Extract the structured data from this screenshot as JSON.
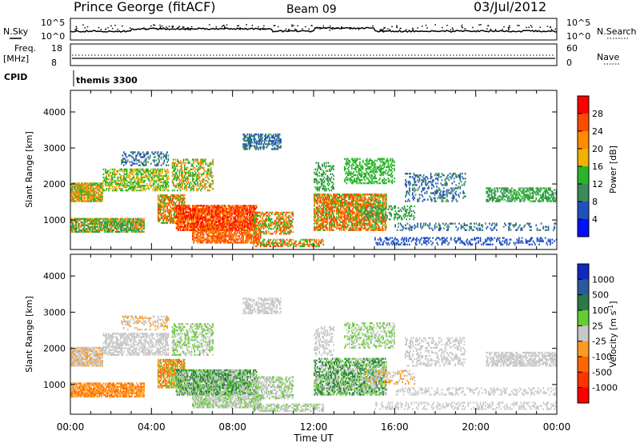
{
  "header": {
    "station": "Prince George (fitACF)",
    "beam": "Beam 09",
    "date": "03/Jul/2012"
  },
  "nsky_panel": {
    "left_label": "N.Sky",
    "right_label": "N.Search",
    "left_ticks": [
      "10^5",
      "10^0"
    ],
    "right_ticks": [
      "10^5",
      "10^0"
    ]
  },
  "freq_panel": {
    "left_label_line1": "Freq.",
    "left_label_line2": "[MHz]",
    "right_label": "Nave",
    "left_ticks": [
      "18",
      "8"
    ],
    "right_ticks": [
      "60",
      "0"
    ]
  },
  "cpid_panel": {
    "label": "CPID",
    "value": "themis 3300"
  },
  "time_axis": {
    "label": "Time UT",
    "ticks": [
      "00:00",
      "04:00",
      "08:00",
      "12:00",
      "16:00",
      "20:00",
      "00:00"
    ]
  },
  "chart_data": [
    {
      "type": "heatmap",
      "quantity": "Power",
      "ylabel": "Slant Range [km]",
      "xlabel": "Time UT",
      "x_range_hours": [
        0,
        24
      ],
      "ylim_km": [
        180,
        4600
      ],
      "y_ticks": [
        1000,
        2000,
        3000,
        4000
      ],
      "colorbar_label": "Power [dB]",
      "colorbar_ticks": [
        "28",
        "24",
        "20",
        "16",
        "12",
        "8",
        "4"
      ],
      "colorbar_colors": [
        "#ff0000",
        "#ff4a00",
        "#ff8c00",
        "#f2b000",
        "#2ab52a",
        "#3a8a5a",
        "#2050c0",
        "#0010ff"
      ]
    },
    {
      "type": "heatmap",
      "quantity": "Velocity",
      "ylabel": "Slant Range [km]",
      "xlabel": "Time UT",
      "x_range_hours": [
        0,
        24
      ],
      "ylim_km": [
        180,
        4600
      ],
      "y_ticks": [
        1000,
        2000,
        3000,
        4000
      ],
      "colorbar_label": "Velocity [m s^-1]",
      "colorbar_ticks": [
        "1000",
        "500",
        "100",
        "25",
        "-25",
        "-100",
        "-500",
        "-1000"
      ],
      "colorbar_colors": [
        "#1028c0",
        "#2a5a9a",
        "#2a7a4a",
        "#66cc33",
        "#c8c8c8",
        "#ff9a20",
        "#ff6600",
        "#ff3300",
        "#ff0000"
      ]
    }
  ]
}
